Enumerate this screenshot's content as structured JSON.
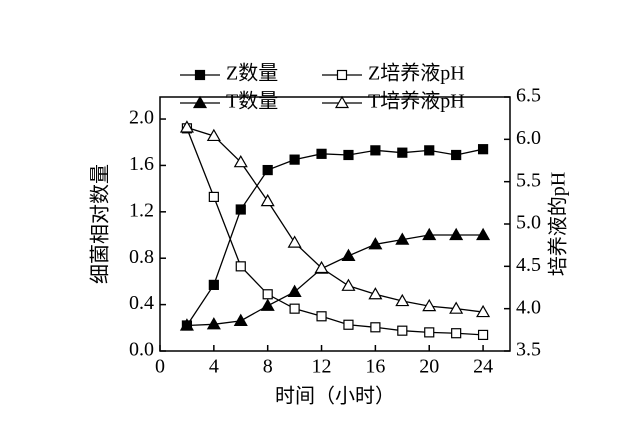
{
  "chart_data": {
    "type": "line",
    "xlabel": "时间（小时）",
    "ylabel": "细菌相对数量",
    "y2label": "培养液的pH",
    "x": [
      2,
      4,
      6,
      8,
      10,
      12,
      14,
      16,
      18,
      20,
      22,
      24
    ],
    "xlim": [
      0,
      26
    ],
    "xticks": [
      0,
      4,
      8,
      12,
      16,
      20,
      24
    ],
    "ylim": [
      0,
      2.19
    ],
    "yticks": [
      {
        "value": 0,
        "label": "0.0"
      },
      0.4,
      0.8,
      1.2,
      1.6,
      {
        "value": 2,
        "label": "2.0"
      }
    ],
    "y2lim": [
      3.5,
      6.5
    ],
    "y2ticks": [
      3.5,
      {
        "value": 4,
        "label": "4.0"
      },
      4.5,
      {
        "value": 5,
        "label": "5.0"
      },
      5.5,
      {
        "value": 6,
        "label": "6.0"
      },
      6.5
    ],
    "series": [
      {
        "name": "Z数量",
        "color": "#000000",
        "marker": "square",
        "fill": "filled",
        "values": [
          0.22,
          0.57,
          1.22,
          1.56,
          1.65,
          1.7,
          1.69,
          1.73,
          1.71,
          1.73,
          1.69,
          1.74
        ]
      },
      {
        "name": "T数量",
        "color": "#000000",
        "marker": "triangle",
        "fill": "filled",
        "values": [
          0.22,
          0.23,
          0.26,
          0.39,
          0.51,
          0.71,
          0.82,
          0.92,
          0.96,
          1.0,
          1.0,
          1.0
        ]
      },
      {
        "name": "Z培养液pH",
        "color": "#000000",
        "marker": "square",
        "fill": "open",
        "axis": "y2",
        "values": [
          6.13,
          5.32,
          4.5,
          4.17,
          4.0,
          3.91,
          3.81,
          3.78,
          3.74,
          3.72,
          3.71,
          3.69
        ]
      },
      {
        "name": "T培养液pH",
        "color": "#000000",
        "marker": "triangle",
        "fill": "open",
        "axis": "y2",
        "values": [
          6.14,
          6.04,
          5.73,
          5.27,
          4.78,
          4.48,
          4.27,
          4.17,
          4.09,
          4.03,
          4.0,
          3.96
        ]
      }
    ]
  }
}
